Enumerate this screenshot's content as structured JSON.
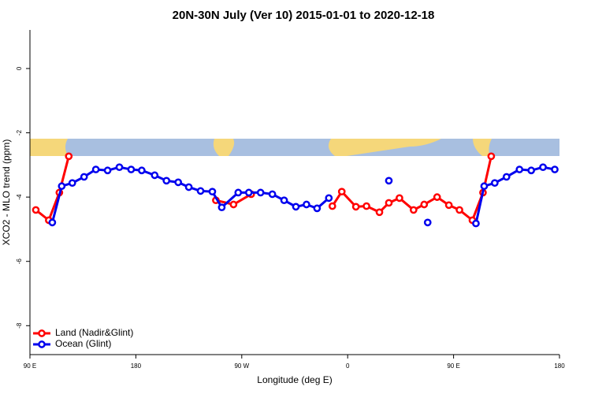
{
  "chart_data": {
    "type": "line",
    "title": "20N-30N July (Ver 10)   2015-01-01 to 2020-12-18",
    "xlabel": "Longitude (deg E)",
    "ylabel": "XCO2 - MLO trend (ppm)",
    "xlim": [
      90,
      540
    ],
    "xticks": [
      {
        "value": 90,
        "label": "90 E"
      },
      {
        "value": 180,
        "label": "180"
      },
      {
        "value": 270,
        "label": "90 W"
      },
      {
        "value": 360,
        "label": "0"
      },
      {
        "value": 450,
        "label": "90 E"
      },
      {
        "value": 540,
        "label": "180"
      }
    ],
    "ylim": [
      -8.9,
      1.2
    ],
    "yticks": [
      -8,
      -6,
      -4,
      -2,
      0
    ],
    "legend": "bottom-left",
    "series": [
      {
        "name": "Land (Nadir&Glint)",
        "color": "#ff0000",
        "x": [
          95,
          106,
          115,
          123,
          null,
          248,
          263,
          278,
          null,
          347,
          355,
          367,
          376,
          387,
          395,
          404,
          416,
          425,
          436,
          446,
          455,
          466,
          475,
          482
        ],
        "values": [
          -4.4,
          -4.72,
          -3.86,
          -2.73,
          null,
          -4.1,
          -4.23,
          -3.91,
          null,
          -4.28,
          -3.83,
          -4.3,
          -4.28,
          -4.47,
          -4.18,
          -4.03,
          -4.4,
          -4.23,
          -4.0,
          -4.25,
          -4.4,
          -4.72,
          -3.86,
          -2.73
        ]
      },
      {
        "name": "Ocean (Glint)",
        "color": "#0000ee",
        "x": [
          109,
          117,
          126,
          136,
          146,
          156,
          166,
          176,
          185,
          196,
          206,
          216,
          225,
          235,
          245,
          253,
          267,
          276,
          286,
          296,
          306,
          316,
          325,
          334,
          344,
          null,
          395,
          null,
          428,
          null,
          469,
          476,
          485,
          495,
          506,
          516,
          526,
          536
        ],
        "values": [
          -4.79,
          -3.66,
          -3.56,
          -3.37,
          -3.14,
          -3.17,
          -3.07,
          -3.14,
          -3.17,
          -3.32,
          -3.49,
          -3.54,
          -3.69,
          -3.81,
          -3.83,
          -4.32,
          -3.86,
          -3.86,
          -3.86,
          -3.91,
          -4.1,
          -4.3,
          -4.23,
          -4.35,
          -4.03,
          null,
          -3.49,
          null,
          -4.79,
          null,
          -4.82,
          -3.66,
          -3.56,
          -3.37,
          -3.14,
          -3.17,
          -3.07,
          -3.14
        ]
      }
    ]
  }
}
